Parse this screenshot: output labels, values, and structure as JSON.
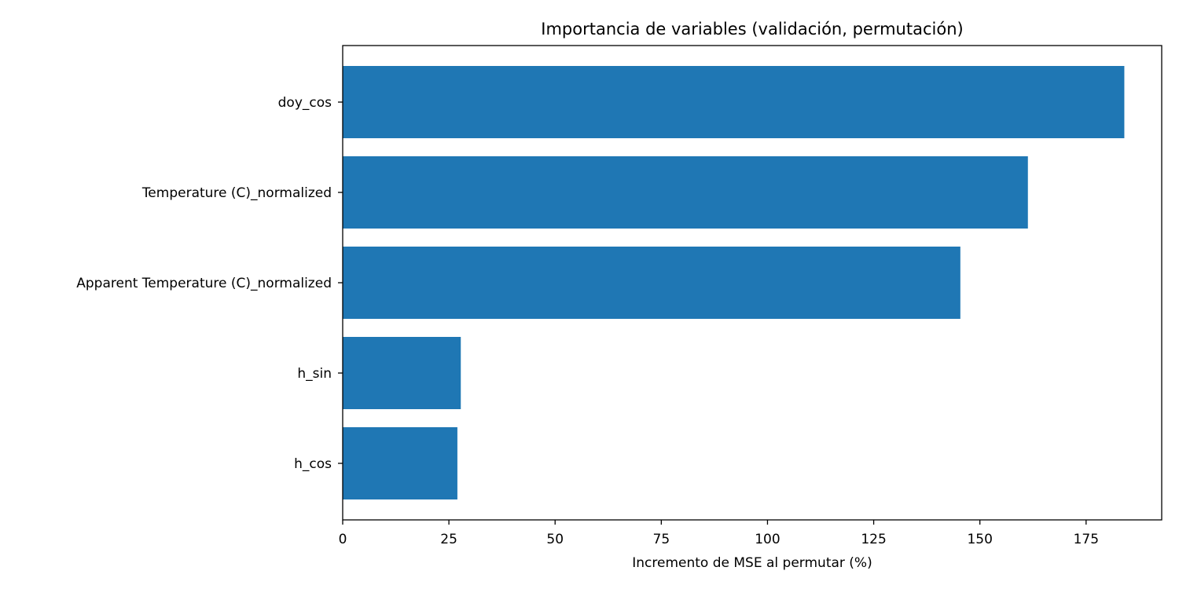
{
  "chart_data": {
    "type": "bar",
    "orientation": "horizontal",
    "title": "Importancia de variables (validación, permutación)",
    "xlabel": "Incremento de MSE al permutar (%)",
    "ylabel": "",
    "categories": [
      "doy_cos",
      "Temperature (C)_normalized",
      "Apparent Temperature (C)_normalized",
      "h_sin",
      "h_cos"
    ],
    "values": [
      184,
      161.3,
      145.4,
      27.8,
      27.0
    ],
    "xlim": [
      0,
      192.8
    ],
    "xticks": [
      0,
      25,
      50,
      75,
      100,
      125,
      150,
      175
    ],
    "bar_color": "#1f77b4",
    "grid": false,
    "legend": "none"
  }
}
